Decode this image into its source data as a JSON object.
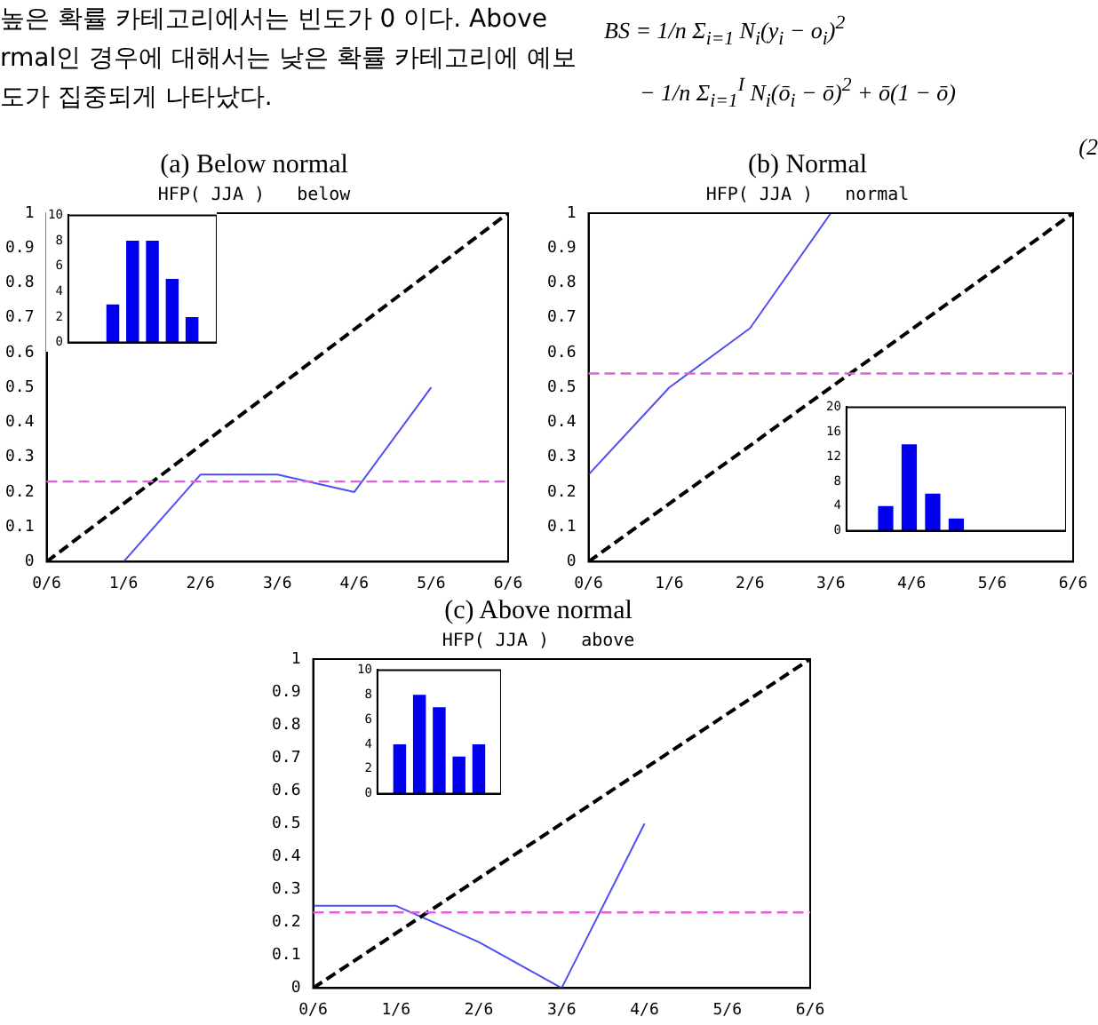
{
  "chart_data": [
    {
      "type": "line",
      "title": "(a) Below normal",
      "subtitle": "HFP( JJA )   below",
      "annotations": [
        "높은 확률 카테고리에서는 빈도가 0 이다. Above",
        "rmal인 경우에 대해서는 낮은 확률 카테고리에 예보",
        "도가 집중되게 나타났다.",
        "BS = 1/n Σ$_{i=1}$ N$_{i}$(y$_{i}$ − o$_{i}$)$^{2}$",
        "− 1/n Σ$_{i=1}$$^{I}$ N$_{i}$(ō$_{i}$ − ō)$^{2}$ + ō(1 − ō)",
        "(2"
      ],
      "xlim": [
        0,
        1
      ],
      "xticks": [
        {
          "value": 0,
          "label": "0/6"
        },
        {
          "value": 0.1667,
          "label": "1/6"
        },
        {
          "value": 0.3333,
          "label": "2/6"
        },
        {
          "value": 0.5,
          "label": "3/6"
        },
        {
          "value": 0.6667,
          "label": "4/6"
        },
        {
          "value": 0.8333,
          "label": "5/6"
        },
        {
          "value": 1,
          "label": "6/6"
        }
      ],
      "ylim": [
        0,
        1
      ],
      "yticks": [
        0,
        0.1,
        0.2,
        0.3,
        0.4,
        0.5,
        0.6,
        0.7,
        0.8,
        0.9,
        1
      ],
      "grid": false,
      "legend": false,
      "marker": "none",
      "series": [
        {
          "color": "#000000",
          "x": [
            0,
            1
          ],
          "values": [
            0,
            1
          ],
          "line_style": "dashed"
        },
        {
          "color": "#5050f0",
          "x": [
            0,
            0.1667,
            0.3333,
            0.5,
            0.6667,
            0.8333
          ],
          "values": [
            0,
            0,
            0.25,
            0.25,
            0.2,
            0.5
          ],
          "line_style": "solid"
        }
      ],
      "ref_lines": [
        {
          "axis": "y",
          "value": 0.23,
          "color": "#e060e0",
          "line_style": "dashed"
        }
      ]
    },
    {
      "type": "bar",
      "categories": [
        null,
        null,
        null,
        null,
        null
      ],
      "values": [
        3,
        8,
        8,
        5,
        2
      ],
      "color": "#0000ee",
      "ylim": [
        0,
        10
      ],
      "yticks": [
        0,
        2,
        4,
        6,
        8,
        10
      ],
      "tick_labels": "y",
      "grid": false,
      "legend": false
    },
    {
      "type": "line",
      "title": "(b) Normal",
      "subtitle": "HFP( JJA )   normal",
      "xlim": [
        0,
        1
      ],
      "xticks": [
        {
          "value": 0,
          "label": "0/6"
        },
        {
          "value": 0.1667,
          "label": "1/6"
        },
        {
          "value": 0.3333,
          "label": "2/6"
        },
        {
          "value": 0.5,
          "label": "3/6"
        },
        {
          "value": 0.6667,
          "label": "4/6"
        },
        {
          "value": 0.8333,
          "label": "5/6"
        },
        {
          "value": 1,
          "label": "6/6"
        }
      ],
      "ylim": [
        0,
        1
      ],
      "yticks": [
        0,
        0.1,
        0.2,
        0.3,
        0.4,
        0.5,
        0.6,
        0.7,
        0.8,
        0.9,
        1
      ],
      "grid": false,
      "legend": false,
      "marker": "none",
      "series": [
        {
          "color": "#000000",
          "x": [
            0,
            1
          ],
          "values": [
            0,
            1
          ],
          "line_style": "dashed"
        },
        {
          "color": "#5050f0",
          "x": [
            0,
            0.1667,
            0.3333,
            0.5
          ],
          "values": [
            0.25,
            0.5,
            0.67,
            1
          ],
          "line_style": "solid"
        }
      ],
      "ref_lines": [
        {
          "axis": "y",
          "value": 0.54,
          "color": "#e060e0",
          "line_style": "dashed"
        }
      ]
    },
    {
      "type": "bar",
      "categories": [
        null,
        null,
        null,
        null
      ],
      "values": [
        4,
        14,
        6,
        2
      ],
      "color": "#0000ee",
      "ylim": [
        0,
        20
      ],
      "yticks": [
        0,
        4,
        8,
        12,
        16,
        20
      ],
      "tick_labels": "y",
      "grid": false,
      "legend": false
    },
    {
      "type": "line",
      "title": "(c) Above normal",
      "subtitle": "HFP( JJA )   above",
      "xlim": [
        0,
        1
      ],
      "xticks": [
        {
          "value": 0,
          "label": "0/6"
        },
        {
          "value": 0.1667,
          "label": "1/6"
        },
        {
          "value": 0.3333,
          "label": "2/6"
        },
        {
          "value": 0.5,
          "label": "3/6"
        },
        {
          "value": 0.6667,
          "label": "4/6"
        },
        {
          "value": 0.8333,
          "label": "5/6"
        },
        {
          "value": 1,
          "label": "6/6"
        }
      ],
      "ylim": [
        0,
        1
      ],
      "yticks": [
        0,
        0.1,
        0.2,
        0.3,
        0.4,
        0.5,
        0.6,
        0.7,
        0.8,
        0.9,
        1
      ],
      "grid": false,
      "legend": false,
      "marker": "none",
      "series": [
        {
          "color": "#000000",
          "x": [
            0,
            1
          ],
          "values": [
            0,
            1
          ],
          "line_style": "dashed"
        },
        {
          "color": "#5050f0",
          "x": [
            0,
            0.1667,
            0.3333,
            0.5,
            0.6667
          ],
          "values": [
            0.25,
            0.25,
            0.14,
            0,
            0.5
          ],
          "line_style": "solid"
        }
      ],
      "ref_lines": [
        {
          "axis": "y",
          "value": 0.23,
          "color": "#e060e0",
          "line_style": "dashed"
        }
      ]
    },
    {
      "type": "bar",
      "categories": [
        null,
        null,
        null,
        null,
        null
      ],
      "values": [
        4,
        8,
        7,
        3,
        4
      ],
      "color": "#0000ee",
      "ylim": [
        0,
        10
      ],
      "yticks": [
        0,
        2,
        4,
        6,
        8,
        10
      ],
      "tick_labels": "y",
      "grid": false,
      "legend": false
    }
  ]
}
